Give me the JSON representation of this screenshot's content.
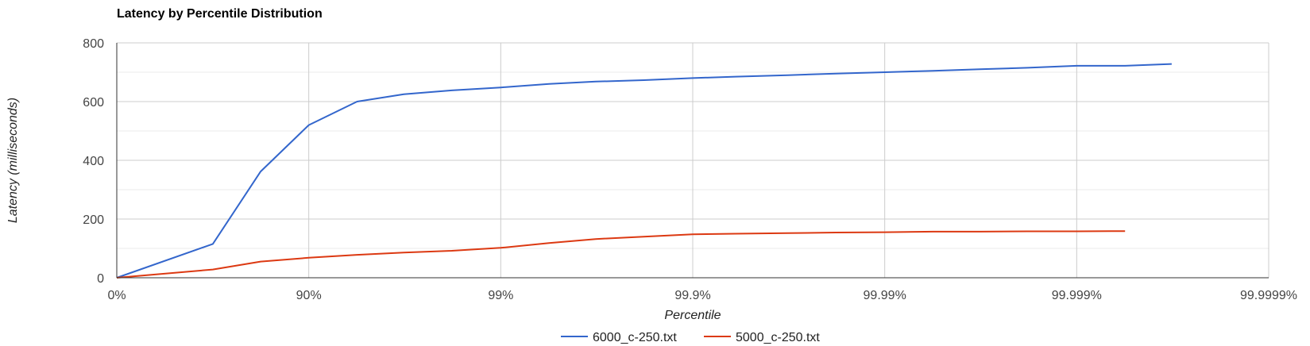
{
  "chart_data": {
    "type": "line",
    "title": "Latency by Percentile Distribution",
    "xlabel": "Percentile",
    "ylabel": "Latency (milliseconds)",
    "x_scale": "log10(1/(1-percentile))",
    "x_ticks": [
      "0%",
      "90%",
      "99%",
      "99.9%",
      "99.99%",
      "99.999%",
      "99.9999%"
    ],
    "y_ticks": [
      "0",
      "200",
      "400",
      "600",
      "800"
    ],
    "ylim": [
      0,
      800
    ],
    "grid": true,
    "legend_position": "bottom",
    "series": [
      {
        "name": "6000_c-250.txt",
        "color": "#3366cc",
        "x": [
          "0%",
          "68.4%",
          "82.2%",
          "90%",
          "94.4%",
          "96.8%",
          "98.2%",
          "99%",
          "99.44%",
          "99.68%",
          "99.82%",
          "99.9%",
          "99.94%",
          "99.968%",
          "99.982%",
          "99.99%",
          "99.9944%",
          "99.9968%",
          "99.9982%",
          "99.999%",
          "99.99944%",
          "99.99968%"
        ],
        "values": [
          0,
          115,
          362,
          520,
          600,
          625,
          638,
          648,
          660,
          668,
          673,
          680,
          685,
          690,
          695,
          700,
          705,
          710,
          715,
          722,
          722,
          728
        ]
      },
      {
        "name": "5000_c-250.txt",
        "color": "#dc3912",
        "x": [
          "0%",
          "68.4%",
          "82.2%",
          "90%",
          "94.4%",
          "96.8%",
          "98.2%",
          "99%",
          "99.44%",
          "99.68%",
          "99.82%",
          "99.9%",
          "99.94%",
          "99.968%",
          "99.982%",
          "99.99%",
          "99.9944%",
          "99.9968%",
          "99.9982%",
          "99.999%",
          "99.99944%"
        ],
        "values": [
          0,
          28,
          55,
          68,
          78,
          86,
          92,
          102,
          118,
          132,
          140,
          148,
          150,
          152,
          154,
          155,
          157,
          157,
          158,
          158,
          159
        ]
      }
    ]
  }
}
